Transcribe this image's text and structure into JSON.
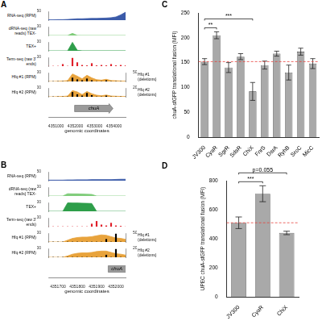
{
  "chart_data": [
    {
      "type": "tracks",
      "panel": "A",
      "x": [
        4350600,
        4350850,
        4351100,
        4351350,
        4351600,
        4351850,
        4352100,
        4352350,
        4352600,
        4352850,
        4353100,
        4353350,
        4353600,
        4353850,
        4354100,
        4354350,
        4354600
      ],
      "xlim": [
        4350600,
        4354600
      ],
      "xticks": [
        4351000,
        4352000,
        4353000,
        4354000
      ],
      "x_label": "genomic coordinates",
      "genes": [
        {
          "name": "chuA",
          "start": 4351960,
          "end": 4353950,
          "color": "#9a9a9a"
        }
      ],
      "tracks": [
        {
          "label": "RNA-seq (RPM)",
          "type": "line",
          "color": "#3b5ba9",
          "ylim": [
            0,
            50
          ],
          "yticks": [
            50
          ],
          "values": [
            2,
            2,
            3,
            3,
            4,
            6,
            8,
            8,
            9,
            10,
            10,
            11,
            12,
            14,
            18,
            30,
            45
          ]
        },
        {
          "group": "dRNA-seq (raw reads)",
          "label": "TEX-",
          "type": "line",
          "color": "#7fcc7a",
          "ylim": [
            0,
            500
          ],
          "yticks": [
            500
          ],
          "values": [
            0,
            0,
            0,
            0,
            0,
            120,
            5,
            2,
            2,
            2,
            2,
            2,
            2,
            2,
            2,
            2,
            2
          ]
        },
        {
          "group": "dRNA-seq (raw reads)",
          "label": "TEX+",
          "type": "line",
          "color": "#2e9e4a",
          "ylim": [
            0,
            500
          ],
          "yticks": [
            500
          ],
          "values": [
            0,
            0,
            0,
            0,
            0,
            480,
            30,
            5,
            5,
            5,
            5,
            5,
            5,
            5,
            5,
            5,
            5
          ]
        },
        {
          "label": "Term-seq (raw 3' ends)",
          "type": "bar",
          "color": "#e0202a",
          "ylim": [
            0,
            100
          ],
          "yticks": [
            100
          ],
          "values": [
            0,
            0,
            0,
            20,
            0,
            90,
            40,
            10,
            5,
            30,
            5,
            10,
            5,
            20,
            5,
            10,
            5
          ]
        },
        {
          "label": "Hfq #1 (RPM)",
          "type": "line",
          "color": "#e8a33c",
          "ylim": [
            0,
            100
          ],
          "yticks": [
            100
          ],
          "values": [
            0,
            0,
            2,
            5,
            10,
            85,
            60,
            30,
            70,
            40,
            20,
            15,
            25,
            10,
            8,
            5,
            3
          ],
          "deletions": {
            "label": "Hfq #1 (deletions)",
            "type": "bar",
            "axis": "y2",
            "color": "#000000",
            "y2lim": [
              0,
              500
            ],
            "y2ticks": [
              500
            ],
            "values": [
              0,
              0,
              0,
              0,
              0,
              200,
              100,
              50,
              150,
              50,
              0,
              0,
              50,
              0,
              0,
              0,
              0
            ]
          }
        },
        {
          "label": "Hfq #2 (RPM)",
          "type": "line",
          "color": "#e8a33c",
          "ylim": [
            0,
            100
          ],
          "yticks": [
            100
          ],
          "values": [
            0,
            0,
            2,
            4,
            8,
            70,
            55,
            25,
            60,
            35,
            18,
            12,
            20,
            8,
            6,
            4,
            2
          ],
          "deletions": {
            "label": "Hfq #2 (deletions)",
            "type": "bar",
            "axis": "y2",
            "color": "#000000",
            "y2lim": [
              0,
              20
            ],
            "y2ticks": [
              20
            ],
            "values": [
              0,
              0,
              0,
              0,
              0,
              10,
              5,
              2,
              8,
              3,
              0,
              0,
              2,
              0,
              0,
              0,
              0
            ]
          }
        }
      ]
    },
    {
      "type": "tracks",
      "panel": "B",
      "x": [
        4351650,
        4351675,
        4351700,
        4351725,
        4351750,
        4351775,
        4351800,
        4351825,
        4351850,
        4351875,
        4351900,
        4351925,
        4351950,
        4351975,
        4352000,
        4352025,
        4352050
      ],
      "xlim": [
        4351650,
        4352050
      ],
      "xticks": [
        4351700,
        4351800,
        4351900,
        4352000
      ],
      "x_label": "genomic coordinates",
      "genes": [
        {
          "name": "chuA",
          "start": 4351960,
          "end": 4353950,
          "color": "#9a9a9a"
        }
      ],
      "tracks": [
        {
          "label": "RNA-seq (RPM)",
          "type": "line",
          "color": "#3b5ba9",
          "ylim": [
            0,
            50
          ],
          "yticks": [
            50
          ],
          "values": [
            3,
            3,
            3,
            3,
            4,
            4,
            5,
            5,
            5,
            6,
            6,
            6,
            6,
            6,
            7,
            8,
            8
          ]
        },
        {
          "group": "dRNA-seq (raw reads)",
          "label": "TEX-",
          "type": "line",
          "color": "#7fcc7a",
          "ylim": [
            0,
            500
          ],
          "yticks": [
            500
          ],
          "values": [
            0,
            0,
            0,
            0,
            130,
            120,
            120,
            110,
            100,
            90,
            0,
            0,
            0,
            0,
            0,
            0,
            0
          ]
        },
        {
          "group": "dRNA-seq (raw reads)",
          "label": "TEX+",
          "type": "line",
          "color": "#2e9e4a",
          "ylim": [
            0,
            500
          ],
          "yticks": [
            500
          ],
          "values": [
            0,
            0,
            0,
            0,
            480,
            470,
            470,
            460,
            450,
            440,
            0,
            0,
            0,
            0,
            0,
            0,
            0
          ]
        },
        {
          "label": "Term-seq (raw 3' ends)",
          "type": "bar",
          "color": "#e0202a",
          "ylim": [
            0,
            100
          ],
          "yticks": [
            100
          ],
          "values": [
            0,
            0,
            0,
            0,
            0,
            0,
            0,
            0,
            0,
            30,
            60,
            20,
            10,
            40,
            10,
            5,
            0
          ]
        },
        {
          "label": "Hfq #1 (RPM)",
          "type": "line",
          "color": "#e8a33c",
          "ylim": [
            0,
            100
          ],
          "yticks": [
            100
          ],
          "values": [
            0,
            0,
            0,
            0,
            20,
            40,
            50,
            55,
            55,
            60,
            70,
            80,
            75,
            60,
            45,
            40,
            30
          ],
          "deletions": {
            "label": "Hfq #1 (deletions)",
            "type": "bar",
            "axis": "y2",
            "color": "#000000",
            "y2lim": [
              0,
              500
            ],
            "y2ticks": [
              500
            ],
            "values": [
              0,
              0,
              0,
              0,
              0,
              0,
              0,
              0,
              0,
              0,
              0,
              0,
              150,
              0,
              450,
              0,
              0
            ]
          }
        },
        {
          "label": "Hfq #2 (RPM)",
          "type": "line",
          "color": "#e8a33c",
          "ylim": [
            0,
            100
          ],
          "yticks": [
            100
          ],
          "values": [
            0,
            0,
            0,
            0,
            15,
            35,
            45,
            50,
            50,
            55,
            65,
            70,
            70,
            55,
            40,
            35,
            25
          ],
          "deletions": {
            "label": "Hfq #2 (deletions)",
            "type": "bar",
            "axis": "y2",
            "color": "#000000",
            "y2lim": [
              0,
              20
            ],
            "y2ticks": [
              20
            ],
            "values": [
              0,
              0,
              0,
              0,
              0,
              0,
              0,
              0,
              0,
              0,
              0,
              0,
              5,
              0,
              18,
              0,
              0
            ]
          }
        }
      ]
    },
    {
      "type": "bar",
      "panel": "C",
      "categories": [
        "JV300",
        "CyaR",
        "SgrR",
        "SdsR",
        "ChiX",
        "FnrS",
        "DsrA",
        "RyhB",
        "SroC",
        "MicC"
      ],
      "values": [
        152,
        205,
        140,
        162,
        92,
        145,
        168,
        130,
        172,
        148
      ],
      "errors": [
        6,
        7,
        10,
        6,
        18,
        8,
        5,
        15,
        7,
        10
      ],
      "color": "#a9a9a9",
      "grid": false,
      "ylim": [
        0,
        250
      ],
      "yticks": [
        0,
        50,
        100,
        150,
        200,
        250
      ],
      "y_label": "chuA-sfGFP translational fusion (MFI)",
      "reference_line": {
        "value": 152,
        "color": "#e8413c"
      },
      "comparisons": [
        {
          "from": "JV300",
          "to": "CyaR",
          "label": "**"
        },
        {
          "from": "JV300",
          "to": "ChiX",
          "label": "***"
        }
      ]
    },
    {
      "type": "bar",
      "panel": "D",
      "categories": [
        "JV300",
        "CyaR",
        "ChiX"
      ],
      "values": [
        510,
        710,
        440
      ],
      "errors": [
        40,
        55,
        12
      ],
      "color": "#a9a9a9",
      "grid": false,
      "ylim": [
        0,
        800
      ],
      "yticks": [
        0,
        200,
        400,
        600,
        800
      ],
      "y_label": "UPEC chuA-sfGFP translational fusion (MFI)",
      "reference_line": {
        "value": 510,
        "color": "#e8413c"
      },
      "comparisons": [
        {
          "from": "JV300",
          "to": "CyaR",
          "label": "***"
        },
        {
          "from": "JV300",
          "to": "ChiX",
          "label": "p=0.055"
        }
      ]
    }
  ]
}
